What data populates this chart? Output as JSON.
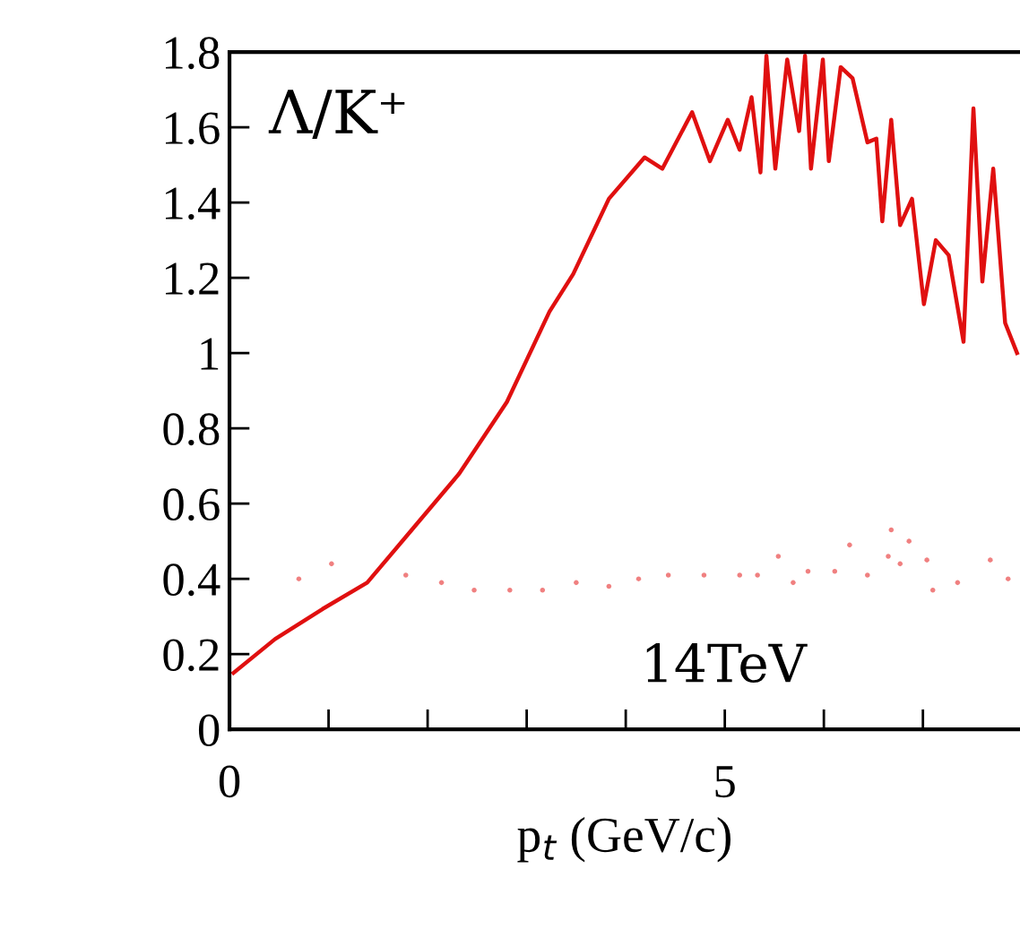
{
  "chart_data": {
    "type": "line",
    "xlabel": "p$_{t}$ (GeV/c)",
    "annotations": [
      "Λ/K⁺",
      "14TeV"
    ],
    "xlim": [
      0,
      7.98
    ],
    "xticks": [
      0,
      {
        "value": 1,
        "label": null
      },
      {
        "value": 2,
        "label": null
      },
      {
        "value": 3,
        "label": null
      },
      {
        "value": 4,
        "label": null
      },
      5,
      {
        "value": 6,
        "label": null
      },
      {
        "value": 7,
        "label": null
      }
    ],
    "ylim": [
      0,
      1.8
    ],
    "yticks": [
      0,
      0.2,
      0.4,
      0.6,
      0.8,
      1,
      1.2,
      1.4,
      1.6,
      1.8
    ],
    "grid": false,
    "legend": false,
    "series": [
      {
        "color": "#e01010",
        "line_style": "solid",
        "marker": "none",
        "x": [
          0.04,
          0.46,
          0.94,
          1.39,
          1.84,
          2.32,
          2.8,
          3.23,
          3.47,
          3.83,
          4.19,
          4.37,
          4.67,
          4.85,
          5.03,
          5.15,
          5.27,
          5.36,
          5.42,
          5.51,
          5.63,
          5.75,
          5.81,
          5.87,
          5.99,
          6.05,
          6.17,
          6.29,
          6.44,
          6.53,
          6.59,
          6.68,
          6.77,
          6.89,
          7.01,
          7.13,
          7.26,
          7.41,
          7.51,
          7.6,
          7.71,
          7.83,
          7.95
        ],
        "values": [
          0.15,
          0.24,
          0.32,
          0.39,
          0.53,
          0.68,
          0.87,
          1.11,
          1.21,
          1.41,
          1.52,
          1.49,
          1.64,
          1.51,
          1.62,
          1.54,
          1.68,
          1.48,
          1.79,
          1.49,
          1.78,
          1.59,
          1.79,
          1.49,
          1.78,
          1.51,
          1.76,
          1.73,
          1.56,
          1.57,
          1.35,
          1.62,
          1.34,
          1.41,
          1.13,
          1.3,
          1.26,
          1.03,
          1.65,
          1.19,
          1.49,
          1.08,
          1.0
        ]
      },
      {
        "type": "scatter",
        "color": "#f08080",
        "marker": "circle",
        "x": [
          0.7,
          1.03,
          1.78,
          2.14,
          2.47,
          2.83,
          3.16,
          3.5,
          3.83,
          4.13,
          4.43,
          4.79,
          5.15,
          5.33,
          5.54,
          5.69,
          5.84,
          6.11,
          6.26,
          6.44,
          6.65,
          6.68,
          6.77,
          6.86,
          7.04,
          7.1,
          7.35,
          7.68,
          7.86
        ],
        "values": [
          0.4,
          0.44,
          0.41,
          0.39,
          0.37,
          0.37,
          0.37,
          0.39,
          0.38,
          0.4,
          0.41,
          0.41,
          0.41,
          0.41,
          0.46,
          0.39,
          0.42,
          0.42,
          0.49,
          0.41,
          0.46,
          0.53,
          0.44,
          0.5,
          0.45,
          0.37,
          0.39,
          0.45,
          0.4
        ]
      }
    ]
  }
}
